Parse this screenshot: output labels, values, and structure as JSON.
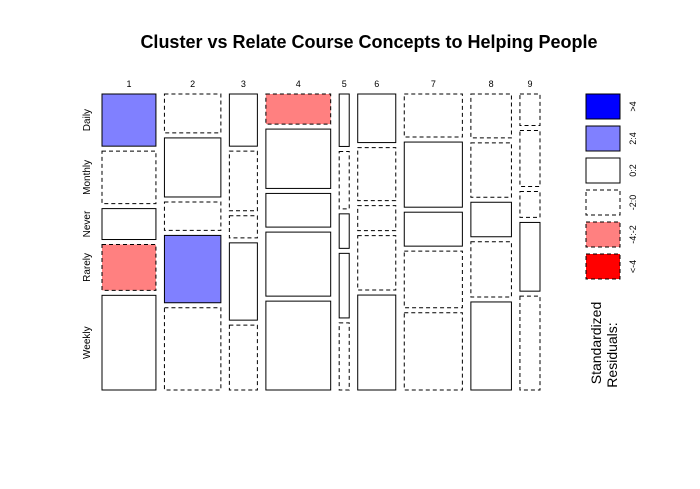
{
  "chart_data": {
    "type": "mosaic",
    "title": "Cluster vs Relate Course Concepts to Helping People",
    "columns": [
      "1",
      "2",
      "3",
      "4",
      "5",
      "6",
      "7",
      "8",
      "9"
    ],
    "rows": [
      "Daily",
      "Monthly",
      "Never",
      "Rarely",
      "Weekly"
    ],
    "column_proportions": [
      0.129,
      0.135,
      0.067,
      0.155,
      0.024,
      0.091,
      0.139,
      0.097,
      0.048
    ],
    "cell_proportions": [
      [
        0.189,
        0.19,
        0.112,
        0.166,
        0.343
      ],
      [
        0.141,
        0.214,
        0.103,
        0.244,
        0.298
      ],
      [
        0.189,
        0.216,
        0.08,
        0.28,
        0.235
      ],
      [
        0.109,
        0.215,
        0.122,
        0.232,
        0.322
      ],
      [
        0.19,
        0.208,
        0.125,
        0.234,
        0.243
      ],
      [
        0.176,
        0.192,
        0.091,
        0.197,
        0.344
      ],
      [
        0.156,
        0.236,
        0.123,
        0.205,
        0.28
      ],
      [
        0.159,
        0.197,
        0.125,
        0.2,
        0.319
      ],
      [
        0.114,
        0.203,
        0.094,
        0.249,
        0.34
      ]
    ],
    "residual_class": [
      [
        "2:4",
        "-2:0",
        "0:2",
        "-4:-2",
        "0:2"
      ],
      [
        "-2:0",
        "0:2",
        "-2:0",
        "2:4",
        "-2:0"
      ],
      [
        "0:2",
        "-2:0",
        "-2:0",
        "0:2",
        "-2:0"
      ],
      [
        "-4:-2",
        "0:2",
        "0:2",
        "0:2",
        "0:2"
      ],
      [
        "0:2",
        "-2:0",
        "0:2",
        "0:2",
        "-2:0"
      ],
      [
        "0:2",
        "-2:0",
        "-2:0",
        "-2:0",
        "0:2"
      ],
      [
        "-2:0",
        "0:2",
        "0:2",
        "-2:0",
        "-2:0"
      ],
      [
        "-2:0",
        "-2:0",
        "0:2",
        "-2:0",
        "0:2"
      ],
      [
        "-2:0",
        "-2:0",
        "-2:0",
        "0:2",
        "-2:0"
      ]
    ],
    "legend": {
      "title_line1": "Standardized",
      "title_line2": "Residuals:",
      "items": [
        {
          "label": ">4",
          "fill": "#0000ff",
          "dashed": false
        },
        {
          "label": "2:4",
          "fill": "#8080ff",
          "dashed": false
        },
        {
          "label": "0:2",
          "fill": "#ffffff",
          "dashed": false
        },
        {
          "label": "-2:0",
          "fill": "#ffffff",
          "dashed": true
        },
        {
          "label": "-4:-2",
          "fill": "#ff8080",
          "dashed": true
        },
        {
          "label": "<-4",
          "fill": "#ff0000",
          "dashed": true
        }
      ]
    },
    "colors": {
      "2:4": "#8080ff",
      "0:2": "#ffffff",
      "-2:0": "#ffffff",
      "-4:-2": "#ff8080"
    }
  }
}
